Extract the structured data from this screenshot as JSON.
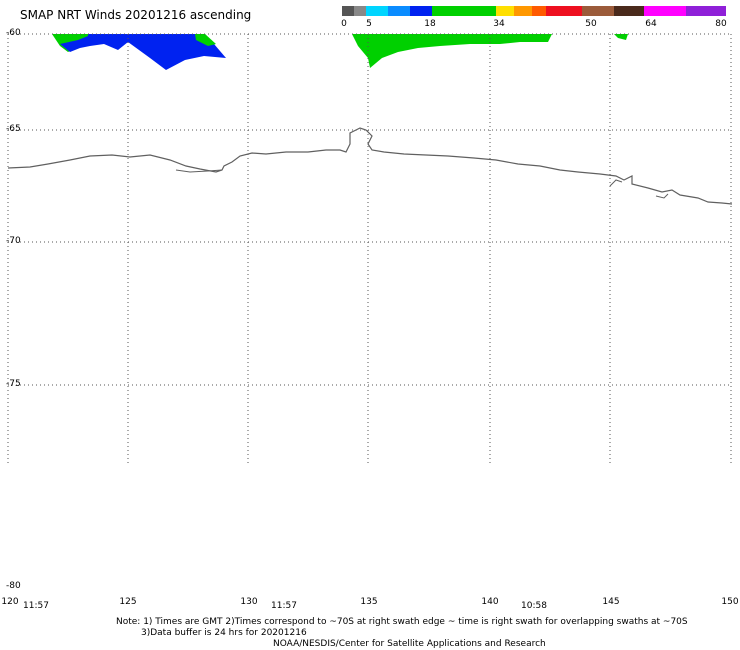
{
  "title": "SMAP NRT Winds 20201216 ascending",
  "legend": {
    "ticks": [
      "0",
      "5",
      "18",
      "34",
      "50",
      "64",
      "80"
    ],
    "colors": {
      "gray_dark": "#555555",
      "gray_light": "#888888",
      "cyan": "#00d5ff",
      "blue_mid": "#0a8cff",
      "blue": "#0022f0",
      "green": "#00d000",
      "yellow": "#ffdf00",
      "orange": "#ff9800",
      "orange_red": "#ff5a00",
      "red": "#ee1020",
      "brown": "#9b5b3a",
      "brown_dark": "#4a2a1c",
      "magenta": "#ff00ff",
      "purple": "#8f20d8"
    }
  },
  "lat_labels": [
    "-60",
    "-65",
    "-70",
    "-75",
    "-80"
  ],
  "lon_labels": [
    "120",
    "125",
    "130",
    "135",
    "140",
    "145",
    "150"
  ],
  "time_labels": [
    "11:57",
    "11:57",
    "10:58"
  ],
  "note": {
    "line1": "Note: 1) Times are GMT 2)Times correspond to ~70S at right swath edge ~ time is right swath for overlapping swaths at ~70S",
    "line2": "3)Data buffer is 24 hrs for 20201216",
    "line3": "NOAA/NESDIS/Center for Satellite Applications and Research"
  },
  "map": {
    "lon_range": [
      120,
      150
    ],
    "lat_range": [
      -80,
      -60
    ],
    "wind_colors": {
      "calm": "#00d000",
      "moderate": "#0022f0",
      "coast": "#606060",
      "grid": "#555555"
    }
  }
}
